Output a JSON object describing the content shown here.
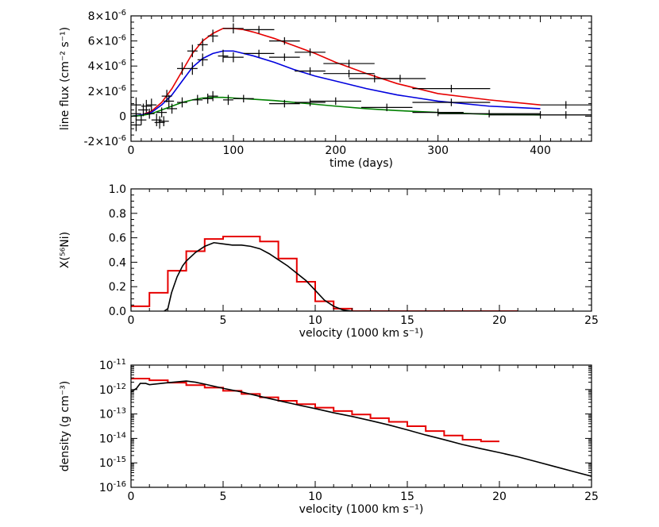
{
  "chart_data": [
    {
      "type": "line",
      "panel": "top",
      "xlabel": "time (days)",
      "ylabel": "line flux (cm⁻² s⁻¹)",
      "xlim": [
        0,
        450
      ],
      "ylim": [
        -2e-06,
        8e-06
      ],
      "x_ticks": [
        0,
        100,
        200,
        300,
        400
      ],
      "x_tick_labels": [
        "0",
        "100",
        "200",
        "300",
        "400"
      ],
      "y_ticks": [
        -2e-06,
        0,
        2e-06,
        4e-06,
        6e-06,
        8e-06
      ],
      "y_tick_labels": [
        {
          "text": "-2×10",
          "exp": "-6"
        },
        {
          "text": "0",
          "exp": ""
        },
        {
          "text": "2×10",
          "exp": "-6"
        },
        {
          "text": "4×10",
          "exp": "-6"
        },
        {
          "text": "6×10",
          "exp": "-6"
        },
        {
          "text": "8×10",
          "exp": "-6"
        }
      ],
      "series": [
        {
          "name": "red model",
          "color": "#e60000",
          "x": [
            0,
            10,
            20,
            30,
            40,
            50,
            60,
            70,
            80,
            90,
            100,
            110,
            120,
            140,
            160,
            180,
            200,
            230,
            260,
            300,
            350,
            400
          ],
          "y": [
            0,
            1e-07,
            4e-07,
            1.1e-06,
            2.2e-06,
            3.6e-06,
            5e-06,
            6e-06,
            6.6e-06,
            7e-06,
            7e-06,
            6.9e-06,
            6.7e-06,
            6.2e-06,
            5.6e-06,
            5e-06,
            4.3e-06,
            3.4e-06,
            2.6e-06,
            1.8e-06,
            1.3e-06,
            9e-07
          ]
        },
        {
          "name": "blue model",
          "color": "#0000dd",
          "x": [
            0,
            10,
            20,
            30,
            40,
            50,
            60,
            70,
            80,
            90,
            100,
            110,
            120,
            140,
            160,
            180,
            200,
            230,
            260,
            300,
            350,
            400
          ],
          "y": [
            0,
            1e-07,
            3e-07,
            9e-07,
            1.7e-06,
            2.8e-06,
            3.9e-06,
            4.6e-06,
            5e-06,
            5.2e-06,
            5.2e-06,
            5e-06,
            4.8e-06,
            4.3e-06,
            3.7e-06,
            3.2e-06,
            2.8e-06,
            2.2e-06,
            1.7e-06,
            1.2e-06,
            8e-07,
            6e-07
          ]
        },
        {
          "name": "green model",
          "color": "#008000",
          "x": [
            0,
            10,
            20,
            30,
            40,
            50,
            60,
            70,
            80,
            90,
            100,
            120,
            140,
            160,
            180,
            200,
            230,
            260,
            300,
            350,
            400
          ],
          "y": [
            0,
            5e-08,
            2e-07,
            5e-07,
            8e-07,
            1.1e-06,
            1.3e-06,
            1.45e-06,
            1.5e-06,
            1.5e-06,
            1.45e-06,
            1.35e-06,
            1.25e-06,
            1.1e-06,
            9.5e-07,
            8e-07,
            6e-07,
            4.5e-07,
            3e-07,
            1.5e-07,
            1e-07
          ]
        }
      ],
      "data_points": [
        [
          5,
          2e-07,
          5,
          5e-07
        ],
        [
          5,
          9e-07,
          5,
          6e-07
        ],
        [
          5,
          -7e-07,
          5,
          5e-07
        ],
        [
          10,
          -3e-07,
          5,
          4e-07
        ],
        [
          12,
          5e-07,
          5,
          5e-07
        ],
        [
          15,
          8e-07,
          5,
          5e-07
        ],
        [
          18,
          2e-07,
          5,
          4e-07
        ],
        [
          20,
          9e-07,
          5,
          5e-07
        ],
        [
          25,
          -3e-07,
          5,
          5e-07
        ],
        [
          28,
          -5e-07,
          5,
          5e-07
        ],
        [
          30,
          3e-07,
          5,
          4e-07
        ],
        [
          32,
          -4e-07,
          5,
          4e-07
        ],
        [
          35,
          1.6e-06,
          5,
          5e-07
        ],
        [
          37,
          1.2e-06,
          5,
          5e-07
        ],
        [
          40,
          6e-07,
          5,
          4e-07
        ],
        [
          50,
          3.8e-06,
          5,
          5e-07
        ],
        [
          50,
          1.1e-06,
          5,
          4e-07
        ],
        [
          60,
          5.2e-06,
          5,
          5e-07
        ],
        [
          60,
          3.8e-06,
          5,
          5e-07
        ],
        [
          65,
          1.3e-06,
          5,
          4e-07
        ],
        [
          70,
          5.7e-06,
          5,
          5e-07
        ],
        [
          70,
          4.5e-06,
          5,
          5e-07
        ],
        [
          75,
          1.4e-06,
          5,
          4e-07
        ],
        [
          80,
          6.4e-06,
          5,
          5e-07
        ],
        [
          80,
          1.6e-06,
          5,
          4e-07
        ],
        [
          90,
          4.8e-06,
          5,
          5e-07
        ],
        [
          95,
          1.3e-06,
          5,
          4e-07
        ],
        [
          100,
          7e-06,
          10,
          4e-07
        ],
        [
          100,
          4.7e-06,
          10,
          4e-07
        ],
        [
          110,
          1.4e-06,
          10,
          3e-07
        ],
        [
          125,
          6.9e-06,
          15,
          3e-07
        ],
        [
          125,
          5e-06,
          15,
          3e-07
        ],
        [
          150,
          6e-06,
          15,
          3e-07
        ],
        [
          150,
          4.7e-06,
          15,
          3e-07
        ],
        [
          150,
          1e-06,
          15,
          3e-07
        ],
        [
          175,
          5.1e-06,
          15,
          3e-07
        ],
        [
          175,
          3.6e-06,
          15,
          3e-07
        ],
        [
          175,
          1.1e-06,
          15,
          3e-07
        ],
        [
          200,
          1.2e-06,
          25,
          3e-07
        ],
        [
          213,
          4.2e-06,
          25,
          3e-07
        ],
        [
          213,
          3.4e-06,
          25,
          3e-07
        ],
        [
          238,
          3e-06,
          25,
          3e-07
        ],
        [
          250,
          7e-07,
          25,
          3e-07
        ],
        [
          263,
          3e-06,
          25,
          3e-07
        ],
        [
          300,
          3e-07,
          25,
          3e-07
        ],
        [
          313,
          2.2e-06,
          38,
          3e-07
        ],
        [
          313,
          1.1e-06,
          38,
          3e-07
        ],
        [
          350,
          2e-07,
          50,
          3e-07
        ],
        [
          400,
          1e-07,
          50,
          3e-07
        ],
        [
          425,
          9e-07,
          25,
          3e-07
        ],
        [
          425,
          1e-07,
          25,
          3e-07
        ]
      ]
    },
    {
      "type": "line",
      "panel": "middle",
      "xlabel": "velocity (1000 km s⁻¹)",
      "ylabel": "X(⁵⁶Ni)",
      "xlim": [
        0,
        25
      ],
      "ylim": [
        0,
        1
      ],
      "x_ticks": [
        0,
        5,
        10,
        15,
        20,
        25
      ],
      "x_tick_labels": [
        "0",
        "5",
        "10",
        "15",
        "20",
        "25"
      ],
      "y_ticks": [
        0,
        0.2,
        0.4,
        0.6,
        0.8,
        1.0
      ],
      "y_tick_labels": [
        "0.0",
        "0.2",
        "0.4",
        "0.6",
        "0.8",
        "1.0"
      ],
      "step_series": {
        "name": "red step",
        "color": "#e60000",
        "edges": [
          0,
          1,
          2,
          3,
          4,
          5,
          6,
          7,
          8,
          9,
          10,
          11,
          12,
          21
        ],
        "values": [
          0.04,
          0.15,
          0.33,
          0.49,
          0.59,
          0.61,
          0.61,
          0.57,
          0.43,
          0.24,
          0.08,
          0.02,
          0.0
        ]
      },
      "series": [
        {
          "name": "black model",
          "color": "#000000",
          "x": [
            1.8,
            2.0,
            2.2,
            2.5,
            2.8,
            3.0,
            3.5,
            4.0,
            4.5,
            5.0,
            5.5,
            6.0,
            6.5,
            7.0,
            7.5,
            8.0,
            8.5,
            9.0,
            9.5,
            10.0,
            10.5,
            11.0,
            11.5,
            12.0
          ],
          "y": [
            0.0,
            0.02,
            0.15,
            0.28,
            0.37,
            0.41,
            0.48,
            0.53,
            0.56,
            0.55,
            0.54,
            0.54,
            0.53,
            0.51,
            0.47,
            0.42,
            0.37,
            0.31,
            0.25,
            0.17,
            0.09,
            0.04,
            0.01,
            0.0
          ]
        }
      ]
    },
    {
      "type": "line",
      "panel": "bottom",
      "xlabel": "velocity (1000 km s⁻¹)",
      "ylabel": "density (g cm⁻³)",
      "xlim": [
        0,
        25
      ],
      "ylim": [
        1e-16,
        1e-11
      ],
      "yscale": "log",
      "x_ticks": [
        0,
        5,
        10,
        15,
        20,
        25
      ],
      "x_tick_labels": [
        "0",
        "5",
        "10",
        "15",
        "20",
        "25"
      ],
      "y_ticks": [
        -16,
        -15,
        -14,
        -13,
        -12,
        -11
      ],
      "y_tick_labels": [
        {
          "text": "10",
          "exp": "-16"
        },
        {
          "text": "10",
          "exp": "-15"
        },
        {
          "text": "10",
          "exp": "-14"
        },
        {
          "text": "10",
          "exp": "-13"
        },
        {
          "text": "10",
          "exp": "-12"
        },
        {
          "text": "10",
          "exp": "-11"
        }
      ],
      "step_series": {
        "name": "red step",
        "color": "#e60000",
        "edges": [
          0,
          1,
          2,
          3,
          4,
          5,
          6,
          7,
          8,
          9,
          10,
          11,
          12,
          13,
          14,
          15,
          16,
          17,
          18,
          19,
          20
        ],
        "log_values": [
          -11.55,
          -11.62,
          -11.72,
          -11.82,
          -11.92,
          -12.05,
          -12.18,
          -12.32,
          -12.46,
          -12.6,
          -12.74,
          -12.88,
          -13.02,
          -13.17,
          -13.32,
          -13.5,
          -13.7,
          -13.88,
          -14.05,
          -14.12
        ]
      },
      "series": [
        {
          "name": "black model",
          "color": "#000000",
          "x": [
            0,
            0.3,
            0.5,
            0.8,
            1,
            2,
            3,
            3.5,
            4,
            5,
            6,
            7,
            8,
            9,
            10,
            11,
            12,
            13,
            14,
            15,
            16,
            17,
            18,
            19,
            20,
            21,
            22,
            23,
            24,
            25
          ],
          "log_y": [
            -12.1,
            -11.95,
            -11.75,
            -11.75,
            -11.8,
            -11.72,
            -11.65,
            -11.7,
            -11.78,
            -11.95,
            -12.1,
            -12.28,
            -12.45,
            -12.62,
            -12.78,
            -12.95,
            -13.1,
            -13.27,
            -13.45,
            -13.65,
            -13.86,
            -14.05,
            -14.25,
            -14.42,
            -14.58,
            -14.75,
            -14.95,
            -15.15,
            -15.35,
            -15.55
          ]
        }
      ]
    }
  ]
}
